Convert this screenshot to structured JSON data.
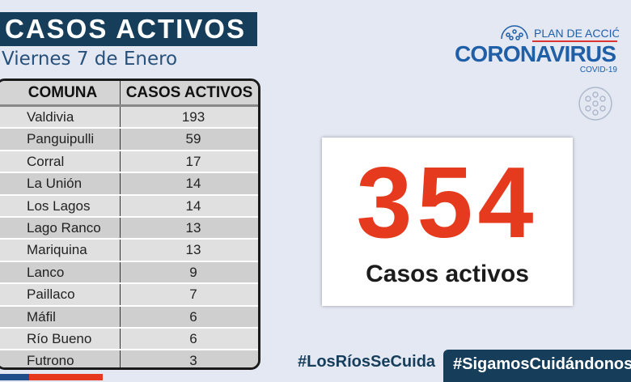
{
  "title": "CASOS ACTIVOS",
  "date": "Viernes 7 de Enero",
  "table": {
    "headers": [
      "COMUNA",
      "CASOS ACTIVOS"
    ],
    "rows": [
      [
        "Valdivia",
        "193"
      ],
      [
        "Panguipulli",
        "59"
      ],
      [
        "Corral",
        "17"
      ],
      [
        "La Unión",
        "14"
      ],
      [
        "Los Lagos",
        "14"
      ],
      [
        "Lago Ranco",
        "13"
      ],
      [
        "Mariquina",
        "13"
      ],
      [
        "Lanco",
        "9"
      ],
      [
        "Paillaco",
        "7"
      ],
      [
        "Máfil",
        "6"
      ],
      [
        "Río Bueno",
        "6"
      ],
      [
        "Futrono",
        "3"
      ]
    ]
  },
  "logo": {
    "plan": "PLAN DE ACCIÓN",
    "name": "CORONAVIRUS",
    "sub": "COVID-19"
  },
  "total": {
    "value": "354",
    "label": "Casos activos"
  },
  "hashtags": [
    "#LosRíosSeCuida",
    "#SigamosCuidándonos"
  ],
  "colors": {
    "navy": "#163e5a",
    "red": "#e63a1f",
    "blue": "#1f5fa8"
  }
}
